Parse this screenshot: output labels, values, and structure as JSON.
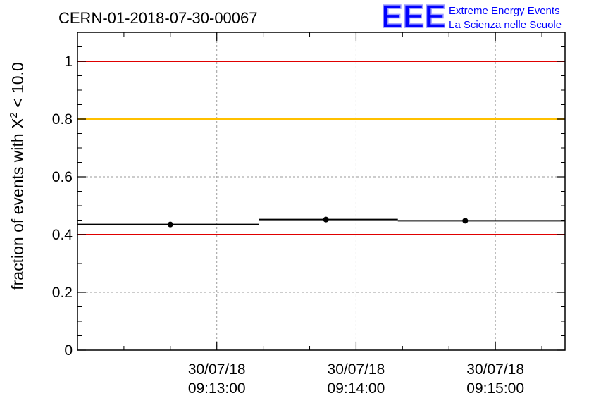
{
  "title": "CERN-01-2018-07-30-00067",
  "logo": {
    "mark": "EEE",
    "line1": "Extreme Energy Events",
    "line2": "La Scienza nelle Scuole",
    "color": "#0000ff"
  },
  "chart_data": {
    "type": "scatter",
    "ylabel_prefix": "fraction of events with ",
    "ylabel_symbol": "X",
    "ylabel_sup": "2",
    "ylabel_suffix": " < 10.0",
    "ylim": [
      0,
      1.1
    ],
    "yticks": [
      {
        "value": 0,
        "label": "0"
      },
      {
        "value": 0.2,
        "label": "0.2"
      },
      {
        "value": 0.4,
        "label": "0.4"
      },
      {
        "value": 0.6,
        "label": "0.6"
      },
      {
        "value": 0.8,
        "label": "0.8"
      },
      {
        "value": 1.0,
        "label": "1"
      }
    ],
    "xlim": [
      "09:12:00",
      "09:15:30"
    ],
    "xticks": [
      {
        "value": "09:13:00",
        "date": "30/07/18",
        "time": "09:13:00"
      },
      {
        "value": "09:14:00",
        "date": "30/07/18",
        "time": "09:14:00"
      },
      {
        "value": "09:15:00",
        "date": "30/07/18",
        "time": "09:15:00"
      }
    ],
    "points": [
      {
        "x": "09:12:40",
        "y": 0.435,
        "x_start": "09:12:00",
        "x_end": "09:13:18"
      },
      {
        "x": "09:13:47",
        "y": 0.452,
        "x_start": "09:13:18",
        "x_end": "09:14:18"
      },
      {
        "x": "09:14:47",
        "y": 0.448,
        "x_start": "09:14:18",
        "x_end": "09:15:30"
      }
    ],
    "reference_lines": [
      {
        "y": 1.0,
        "color": "#e00000"
      },
      {
        "y": 0.8,
        "color": "#ffc000"
      },
      {
        "y": 0.4,
        "color": "#e00000"
      }
    ],
    "grid": true,
    "point_color": "#000000"
  }
}
